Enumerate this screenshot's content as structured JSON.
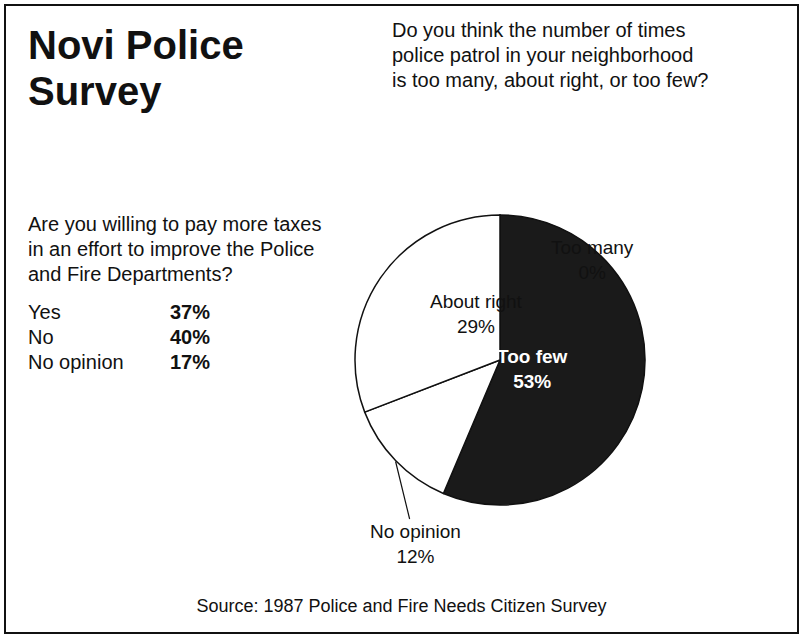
{
  "title": "Novi Police Survey",
  "source": "Source: 1987 Police and Fire Needs Citizen Survey",
  "chart_data": [
    {
      "type": "table",
      "title": "Are you willing to pay more taxes in an effort to improve the Police and Fire Departments?",
      "categories": [
        "Yes",
        "No",
        "No opinion"
      ],
      "values": [
        37,
        40,
        17
      ],
      "value_labels": [
        "37%",
        "40%",
        "17%"
      ]
    },
    {
      "type": "pie",
      "title": "Do you think the number of times police patrol in your neighborhood is too many, about right, or too few?",
      "categories": [
        "Too many",
        "Too few",
        "No opinion",
        "About right"
      ],
      "values": [
        0,
        53,
        12,
        29
      ],
      "value_labels": [
        "0%",
        "53%",
        "12%",
        "29%"
      ],
      "colors": [
        "#ffffff",
        "#1a1a1a",
        "#ffffff",
        "#ffffff"
      ],
      "data_labels": true
    }
  ]
}
